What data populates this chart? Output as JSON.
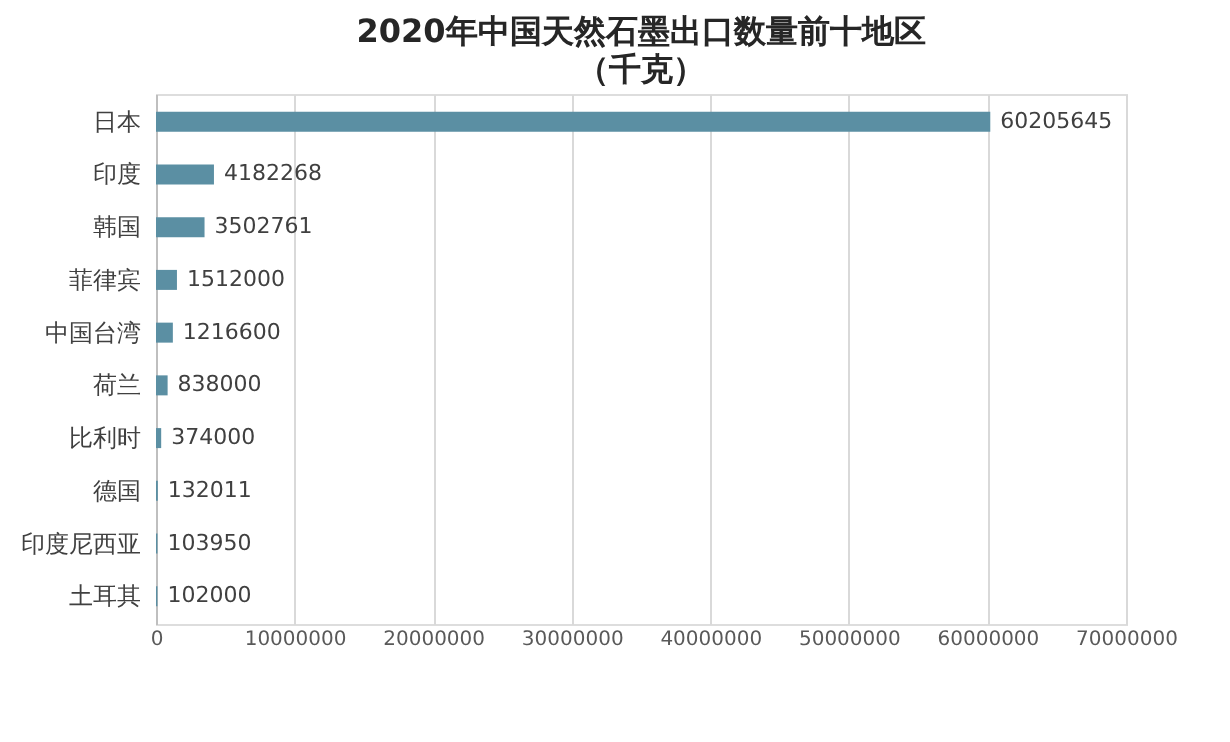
{
  "chart_data": {
    "type": "bar",
    "orientation": "horizontal",
    "title": "2020年中国天然石墨出口数量前十地区",
    "subtitle": "（千克）",
    "categories": [
      "日本",
      "印度",
      "韩国",
      "菲律宾",
      "中国台湾",
      "荷兰",
      "比利时",
      "德国",
      "印度尼西亚",
      "土耳其"
    ],
    "values": [
      60205645,
      4182268,
      3502761,
      1512000,
      1216600,
      838000,
      374000,
      132011,
      103950,
      102000
    ],
    "color": "#5b8fa3",
    "xlim": [
      0,
      70000000
    ],
    "xticks": [
      0,
      10000000,
      20000000,
      30000000,
      40000000,
      50000000,
      60000000,
      70000000
    ],
    "grid": "x",
    "data_labels": true
  }
}
